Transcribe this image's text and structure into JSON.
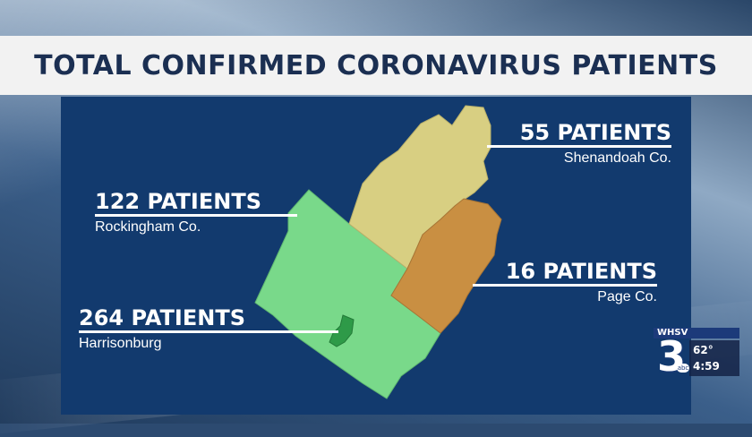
{
  "title": "TOTAL CONFIRMED CORONAVIRUS PATIENTS",
  "regions": [
    {
      "id": "shenandoah",
      "count_label": "55 PATIENTS",
      "county": "Shenandoah Co.",
      "patients": 55,
      "color": "#d8cf82"
    },
    {
      "id": "rockingham",
      "count_label": "122 PATIENTS",
      "county": "Rockingham Co.",
      "patients": 122,
      "color": "#79d98a"
    },
    {
      "id": "page",
      "count_label": "16 PATIENTS",
      "county": "Page Co.",
      "patients": 16,
      "color": "#c98f42"
    },
    {
      "id": "harrisonburg",
      "count_label": "264 PATIENTS",
      "county": "Harrisonburg",
      "patients": 264,
      "color": "#2e9a48"
    }
  ],
  "colors": {
    "title_text": "#1b2f52",
    "panel": "#123a6e",
    "callout_text": "#ffffff"
  },
  "station": {
    "call_sign": "WHSV",
    "channel": "3",
    "network": "abc",
    "temperature": "62°",
    "time": "4:59"
  }
}
